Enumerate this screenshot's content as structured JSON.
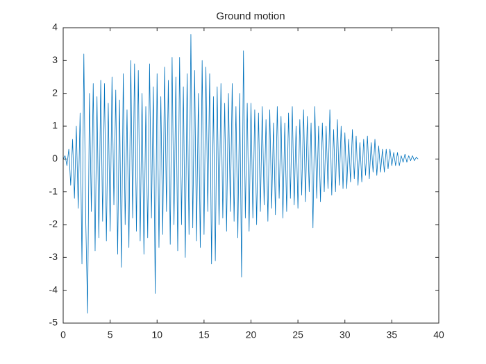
{
  "chart_data": {
    "type": "line",
    "title": "Ground motion",
    "x": [
      0,
      0.2,
      0.4,
      0.6,
      0.8,
      1,
      1.2,
      1.4,
      1.6,
      1.8,
      2,
      2.2,
      2.4,
      2.6,
      2.8,
      3,
      3.2,
      3.4,
      3.6,
      3.8,
      4,
      4.2,
      4.4,
      4.6,
      4.8,
      5,
      5.2,
      5.4,
      5.6,
      5.8,
      6,
      6.2,
      6.4,
      6.6,
      6.8,
      7,
      7.2,
      7.4,
      7.6,
      7.8,
      8,
      8.2,
      8.4,
      8.6,
      8.8,
      9,
      9.2,
      9.4,
      9.6,
      9.8,
      10,
      10.2,
      10.4,
      10.6,
      10.8,
      11,
      11.2,
      11.4,
      11.6,
      11.8,
      12,
      12.2,
      12.4,
      12.6,
      12.8,
      13,
      13.2,
      13.4,
      13.6,
      13.8,
      14,
      14.2,
      14.4,
      14.6,
      14.8,
      15,
      15.2,
      15.4,
      15.6,
      15.8,
      16,
      16.2,
      16.4,
      16.6,
      16.8,
      17,
      17.2,
      17.4,
      17.6,
      17.8,
      18,
      18.2,
      18.4,
      18.6,
      18.8,
      19,
      19.2,
      19.4,
      19.6,
      19.8,
      20,
      20.2,
      20.4,
      20.6,
      20.8,
      21,
      21.2,
      21.4,
      21.6,
      21.8,
      22,
      22.2,
      22.4,
      22.6,
      22.8,
      23,
      23.2,
      23.4,
      23.6,
      23.8,
      24,
      24.2,
      24.4,
      24.6,
      24.8,
      25,
      25.2,
      25.4,
      25.6,
      25.8,
      26,
      26.2,
      26.4,
      26.6,
      26.8,
      27,
      27.2,
      27.4,
      27.6,
      27.8,
      28,
      28.2,
      28.4,
      28.6,
      28.8,
      29,
      29.2,
      29.4,
      29.6,
      29.8,
      30,
      30.2,
      30.4,
      30.6,
      30.8,
      31,
      31.2,
      31.4,
      31.6,
      31.8,
      32,
      32.2,
      32.4,
      32.6,
      32.8,
      33,
      33.2,
      33.4,
      33.6,
      33.8,
      34,
      34.2,
      34.4,
      34.6,
      34.8,
      35,
      35.2,
      35.4,
      35.6,
      35.8,
      36,
      36.2,
      36.4,
      36.6,
      36.8,
      37,
      37.2,
      37.4,
      37.6,
      37.8
    ],
    "series": [
      {
        "color": "#0072bd",
        "values": [
          0,
          0.1,
          -0.2,
          0.3,
          -0.8,
          0.6,
          -1.2,
          1.0,
          -1.5,
          1.4,
          -3.2,
          3.2,
          -1.8,
          -4.7,
          2.0,
          -1.6,
          2.3,
          -2.8,
          1.9,
          -2.4,
          2.4,
          -1.9,
          2.3,
          -2.5,
          1.7,
          -2.2,
          2.5,
          -1.4,
          2.1,
          -2.9,
          1.8,
          -3.3,
          2.6,
          -2.0,
          1.5,
          -2.7,
          3.0,
          -1.8,
          2.9,
          -2.2,
          2.7,
          -2.5,
          2.0,
          -2.9,
          1.6,
          -2.4,
          2.9,
          -1.8,
          2.2,
          -4.1,
          2.6,
          -2.7,
          1.9,
          -2.3,
          2.8,
          -1.6,
          2.4,
          -2.6,
          3.1,
          -2.0,
          2.5,
          -2.8,
          3.1,
          -2.0,
          2.2,
          -3.0,
          2.6,
          -2.3,
          3.8,
          -2.1,
          2.7,
          -2.5,
          2.0,
          -2.7,
          3.0,
          -2.3,
          2.8,
          -1.6,
          2.6,
          -3.2,
          1.9,
          -3.1,
          2.2,
          -2.0,
          2.3,
          -1.8,
          1.7,
          -2.2,
          2.0,
          -1.6,
          2.3,
          -1.9,
          1.6,
          -2.4,
          2.0,
          -3.6,
          3.3,
          -1.8,
          1.7,
          -2.2,
          1.7,
          -1.8,
          1.5,
          -2.0,
          1.4,
          -1.6,
          1.6,
          -1.4,
          1.2,
          -1.9,
          1.5,
          -1.5,
          1.1,
          -1.7,
          1.6,
          -1.2,
          1.3,
          -1.8,
          1.1,
          -1.6,
          1.4,
          -1.2,
          1.6,
          -1.4,
          1.0,
          -1.5,
          1.2,
          -1.1,
          1.5,
          -1.3,
          1.3,
          -1.0,
          1.1,
          -2.1,
          1.6,
          -1.2,
          1.0,
          -1.3,
          1.1,
          -1.0,
          1.0,
          -0.9,
          1.5,
          -1.1,
          0.9,
          -1.0,
          1.2,
          -0.8,
          1.0,
          -0.9,
          0.8,
          -0.9,
          0.6,
          -0.7,
          0.9,
          -0.6,
          0.7,
          -0.8,
          0.5,
          -0.7,
          0.6,
          -0.5,
          0.7,
          -0.6,
          0.5,
          -0.4,
          0.6,
          -0.5,
          0.4,
          -0.4,
          0.3,
          -0.4,
          0.3,
          -0.3,
          0.3,
          -0.2,
          0.2,
          -0.2,
          0.2,
          -0.2,
          0.1,
          -0.1,
          0.15,
          -0.1,
          0.1,
          -0.05,
          0.1,
          -0.05,
          0.05,
          0
        ]
      }
    ],
    "xlim": [
      0,
      40
    ],
    "xticks": [
      0,
      5,
      10,
      15,
      20,
      25,
      30,
      35,
      40
    ],
    "ylim": [
      -5,
      4
    ],
    "yticks": [
      -5,
      -4,
      -3,
      -2,
      -1,
      0,
      1,
      2,
      3,
      4
    ]
  }
}
